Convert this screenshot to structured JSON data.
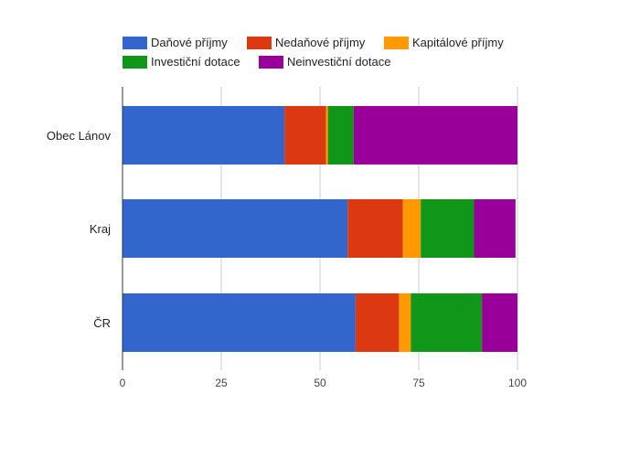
{
  "chart_data": {
    "type": "bar",
    "orientation": "horizontal",
    "stacked": true,
    "categories": [
      "Obec Lánov",
      "Kraj",
      "ČR"
    ],
    "series": [
      {
        "name": "Daňové příjmy",
        "color": "#3366cc",
        "values": [
          41,
          57,
          59
        ]
      },
      {
        "name": "Nedaňové příjmy",
        "color": "#dc3912",
        "values": [
          10.5,
          14,
          11
        ]
      },
      {
        "name": "Kapitálové příjmy",
        "color": "#ff9900",
        "values": [
          0.5,
          4.5,
          3
        ]
      },
      {
        "name": "Investiční dotace",
        "color": "#109618",
        "values": [
          6.5,
          13.5,
          18
        ]
      },
      {
        "name": "Neinvestiční dotace",
        "color": "#990099",
        "values": [
          41.5,
          10.5,
          9
        ]
      }
    ],
    "xlim": [
      0,
      100
    ],
    "xticks": [
      0,
      25,
      50,
      75,
      100
    ],
    "grid": true,
    "legend_position": "top"
  }
}
